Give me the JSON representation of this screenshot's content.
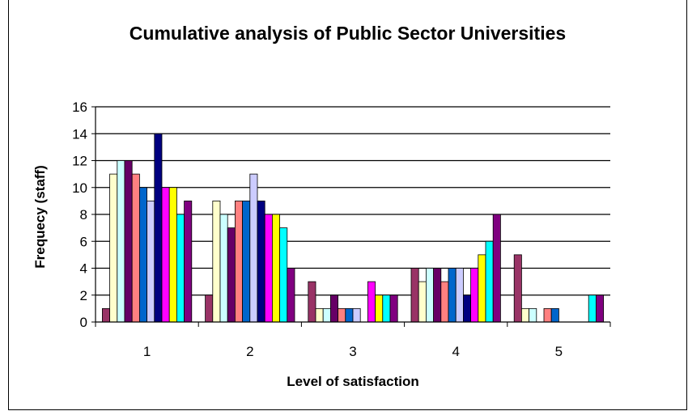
{
  "chart_data": {
    "type": "bar",
    "title": "Cumulative analysis of Public Sector Universities",
    "xlabel": "Level of satisfaction",
    "ylabel": "Frequecy (staff)",
    "categories": [
      "1",
      "2",
      "3",
      "4",
      "5"
    ],
    "ylim": [
      0,
      16
    ],
    "yticks": [
      0,
      2,
      4,
      6,
      8,
      10,
      12,
      14,
      16
    ],
    "grid": true,
    "legend": "none",
    "series": [
      {
        "color": "#993366",
        "values": [
          1,
          2,
          3,
          4,
          5
        ]
      },
      {
        "color": "#FFFFCC",
        "values": [
          11,
          9,
          1,
          3,
          1
        ]
      },
      {
        "color": "#CCFFFF",
        "values": [
          12,
          8,
          1,
          4,
          1
        ]
      },
      {
        "color": "#660066",
        "values": [
          12,
          7,
          2,
          4,
          0
        ]
      },
      {
        "color": "#FF8080",
        "values": [
          11,
          9,
          1,
          3,
          1
        ]
      },
      {
        "color": "#0066CC",
        "values": [
          10,
          9,
          1,
          4,
          1
        ]
      },
      {
        "color": "#CCCCFF",
        "values": [
          9,
          11,
          1,
          4,
          0
        ]
      },
      {
        "color": "#000080",
        "values": [
          14,
          9,
          0,
          2,
          0
        ]
      },
      {
        "color": "#FF00FF",
        "values": [
          10,
          8,
          3,
          4,
          0
        ]
      },
      {
        "color": "#FFFF00",
        "values": [
          10,
          8,
          2,
          5,
          0
        ]
      },
      {
        "color": "#00FFFF",
        "values": [
          8,
          7,
          2,
          6,
          2
        ]
      },
      {
        "color": "#800080",
        "values": [
          9,
          4,
          2,
          8,
          2
        ]
      }
    ]
  }
}
